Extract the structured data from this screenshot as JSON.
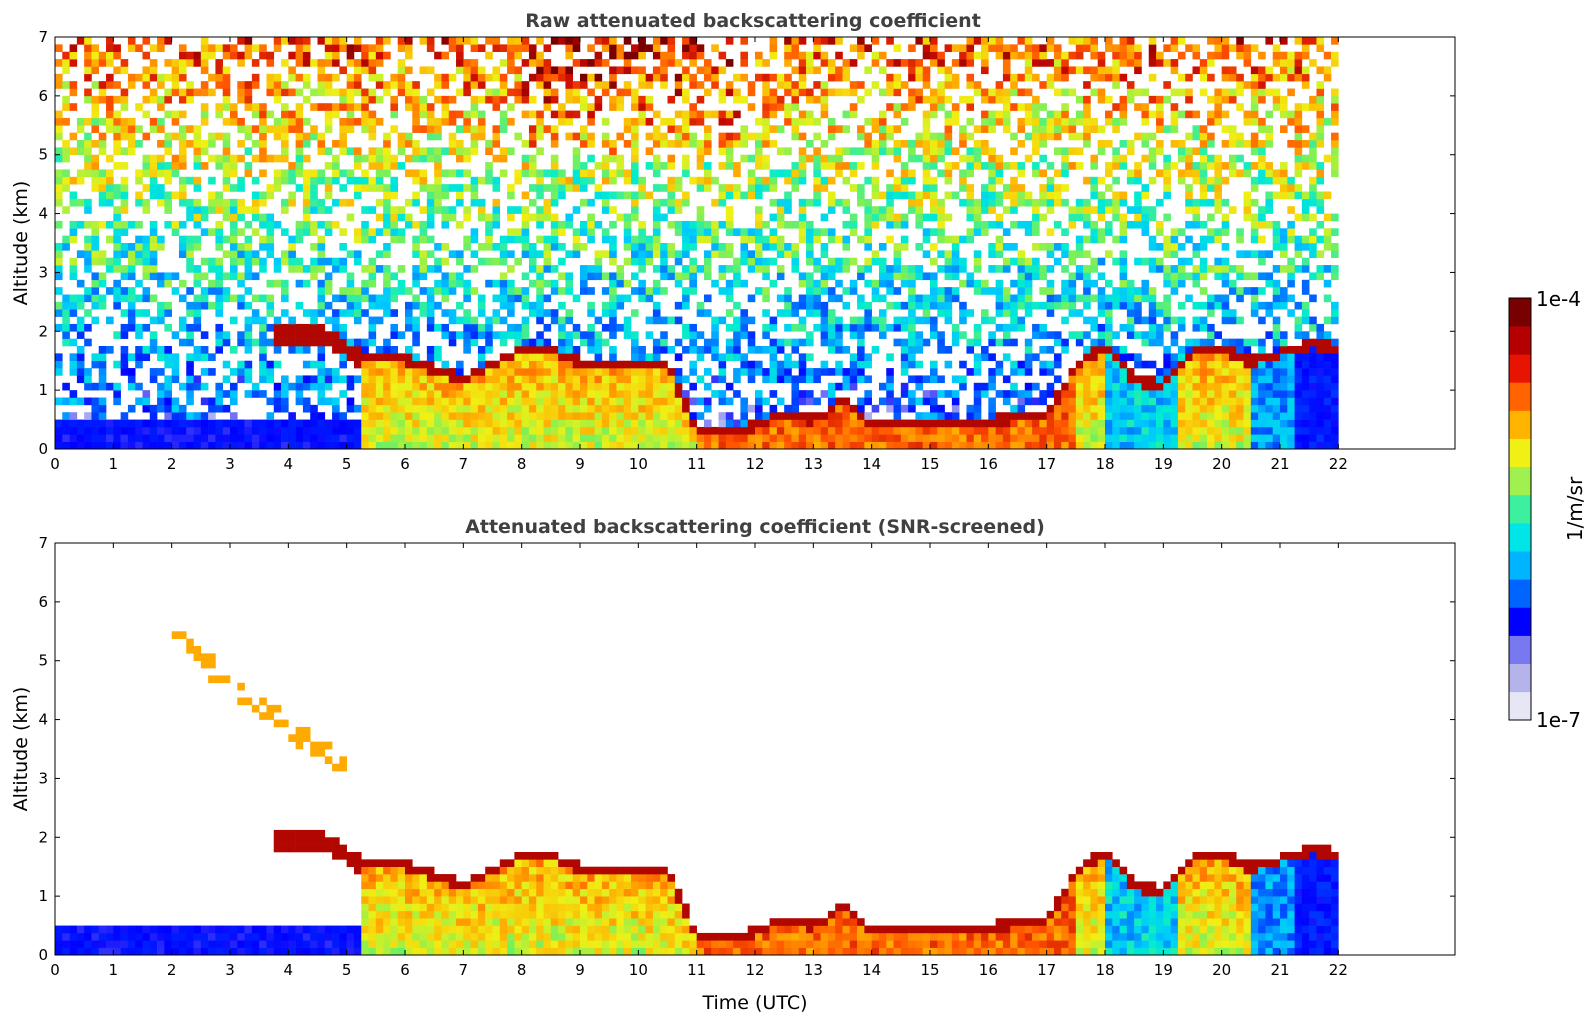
{
  "chart_data": [
    {
      "type": "heatmap",
      "title": "Raw attenuated backscattering coefficient",
      "xlabel": "",
      "ylabel": "Altitude (km)",
      "xlim": [
        0,
        24
      ],
      "ylim": [
        0,
        7
      ],
      "x_ticks": [
        "0",
        "1",
        "2",
        "3",
        "4",
        "5",
        "6",
        "7",
        "8",
        "9",
        "10",
        "11",
        "12",
        "13",
        "14",
        "15",
        "16",
        "17",
        "18",
        "19",
        "20",
        "21",
        "22"
      ],
      "y_ticks": [
        "0",
        "1",
        "2",
        "3",
        "4",
        "5",
        "6",
        "7"
      ],
      "data_end_x": 22,
      "screened": false,
      "cloud_top_profile": {
        "x": [
          3.8,
          4.5,
          4.9,
          5.2,
          6,
          7,
          7.5,
          8,
          8.5,
          9,
          9.5,
          10,
          10.5,
          11,
          11.5,
          12,
          12.5,
          13,
          13.5,
          14,
          15,
          16,
          17,
          17.5,
          18,
          18.5,
          19,
          19.5,
          20,
          20.5,
          21,
          21.5,
          22
        ],
        "y": [
          1.95,
          1.95,
          1.75,
          1.55,
          1.45,
          1.1,
          1.35,
          1.6,
          1.6,
          1.4,
          1.35,
          1.35,
          1.35,
          0.25,
          0.25,
          0.3,
          0.55,
          0.4,
          0.75,
          0.35,
          0.35,
          0.4,
          0.5,
          1.3,
          1.7,
          1.1,
          1.0,
          1.6,
          1.65,
          1.4,
          1.55,
          1.7,
          1.65
        ]
      },
      "colorscale": {
        "min": "1e-7",
        "max": "1e-4",
        "units": "1/m/sr",
        "scale": "log"
      }
    },
    {
      "type": "heatmap",
      "title": "Attenuated backscattering coefficient (SNR-screened)",
      "xlabel": "Time (UTC)",
      "ylabel": "Altitude (km)",
      "xlim": [
        0,
        24
      ],
      "ylim": [
        0,
        7
      ],
      "x_ticks": [
        "0",
        "1",
        "2",
        "3",
        "4",
        "5",
        "6",
        "7",
        "8",
        "9",
        "10",
        "11",
        "12",
        "13",
        "14",
        "15",
        "16",
        "17",
        "18",
        "19",
        "20",
        "21",
        "22"
      ],
      "y_ticks": [
        "0",
        "1",
        "2",
        "3",
        "4",
        "5",
        "6",
        "7"
      ],
      "data_end_x": 22,
      "screened": true,
      "cloud_top_profile": {
        "x": [
          3.8,
          4.5,
          4.9,
          5.2,
          6,
          7,
          7.5,
          8,
          8.5,
          9,
          9.5,
          10,
          10.5,
          11,
          11.5,
          12,
          12.5,
          13,
          13.5,
          14,
          15,
          16,
          17,
          17.5,
          18,
          18.5,
          19,
          19.5,
          20,
          20.5,
          21,
          21.5,
          22
        ],
        "y": [
          1.95,
          1.95,
          1.75,
          1.55,
          1.45,
          1.1,
          1.35,
          1.6,
          1.6,
          1.4,
          1.35,
          1.35,
          1.35,
          0.25,
          0.25,
          0.3,
          0.55,
          0.4,
          0.75,
          0.35,
          0.35,
          0.4,
          0.5,
          1.3,
          1.7,
          1.1,
          1.0,
          1.6,
          1.65,
          1.4,
          1.55,
          1.7,
          1.65
        ]
      },
      "colorscale": {
        "min": "1e-7",
        "max": "1e-4",
        "units": "1/m/sr",
        "scale": "log"
      }
    }
  ],
  "colorbar": {
    "max_label": "1e-4",
    "min_label": "1e-7",
    "units_label": "1/m/sr",
    "colors": [
      "#e6e6f5",
      "#b4b4eb",
      "#7878f0",
      "#0000ff",
      "#0064ff",
      "#00b4ff",
      "#00e6e6",
      "#3cf0a0",
      "#a0f050",
      "#f0f014",
      "#ffb400",
      "#ff6400",
      "#e61400",
      "#b40000",
      "#780000"
    ]
  }
}
